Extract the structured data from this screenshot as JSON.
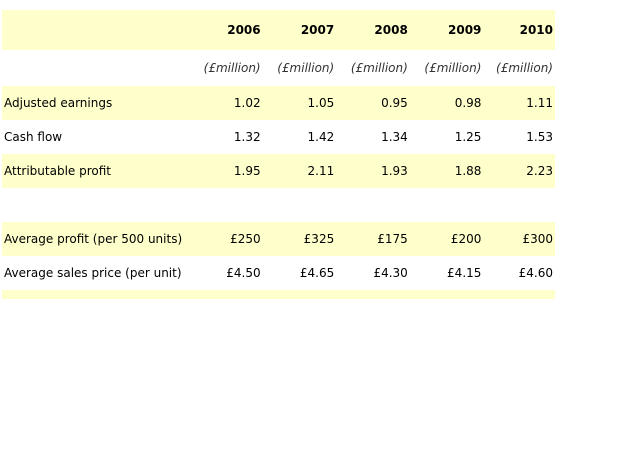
{
  "years": [
    "2006",
    "2007",
    "2008",
    "2009",
    "2010"
  ],
  "units": [
    "(£million)",
    "(£million)",
    "(£million)",
    "(£million)",
    "(£million)"
  ],
  "rows": [
    {
      "label": "Adjusted earnings",
      "values": [
        "1.02",
        "1.05",
        "0.95",
        "0.98",
        "1.11"
      ]
    },
    {
      "label": "Cash flow",
      "values": [
        "1.32",
        "1.42",
        "1.34",
        "1.25",
        "1.53"
      ]
    },
    {
      "label": "Attributable profit",
      "values": [
        "1.95",
        "2.11",
        "1.93",
        "1.88",
        "2.23"
      ]
    },
    {
      "label": "Average profit  (per 500 units)",
      "values": [
        "£250",
        "£325",
        "£175",
        "£200",
        "£300"
      ]
    },
    {
      "label": "Average sales price (per unit)",
      "values": [
        "£4.50",
        "£4.65",
        "£4.30",
        "£4.15",
        "£4.60"
      ]
    }
  ],
  "colors": {
    "shade": "#ffffcc"
  }
}
